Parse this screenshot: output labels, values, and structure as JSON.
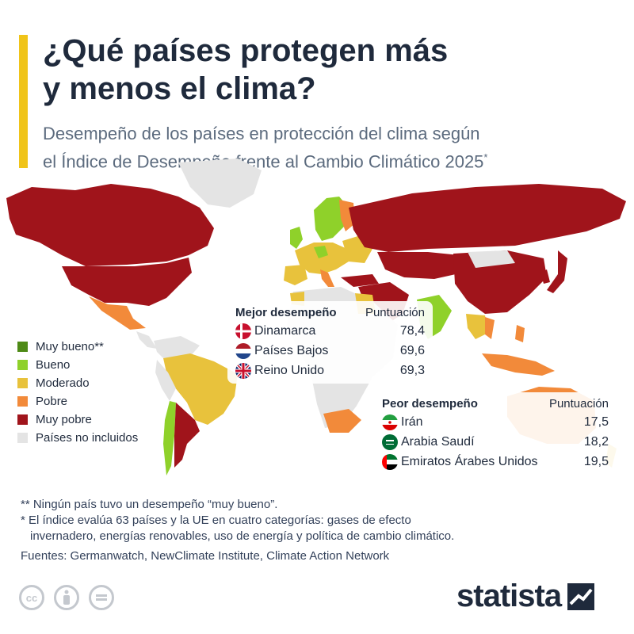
{
  "header": {
    "title_line1": "¿Qué países protegen más",
    "title_line2": "y menos el clima?",
    "subtitle_line1": "Desempeño de los países en protección del clima según",
    "subtitle_line2": "el Índice de Desempeño frente al Cambio Climático 2025",
    "subtitle_mark": "*"
  },
  "legend": {
    "items": [
      {
        "label": "Muy bueno**",
        "color": "#4e8a16"
      },
      {
        "label": "Bueno",
        "color": "#8fd12a"
      },
      {
        "label": "Moderado",
        "color": "#e8c23c"
      },
      {
        "label": "Pobre",
        "color": "#f28a3a"
      },
      {
        "label": "Muy pobre",
        "color": "#a0141b"
      },
      {
        "label": "Países no incluidos",
        "color": "#e4e4e4"
      }
    ]
  },
  "best": {
    "heading": "Mejor desempeño",
    "score_heading": "Puntuación",
    "rows": [
      {
        "name": "Dinamarca",
        "score": "78,4",
        "flag": "denmark-flag-icon"
      },
      {
        "name": "Países Bajos",
        "score": "69,6",
        "flag": "netherlands-flag-icon"
      },
      {
        "name": "Reino Unido",
        "score": "69,3",
        "flag": "uk-flag-icon"
      }
    ]
  },
  "worst": {
    "heading": "Peor desempeño",
    "score_heading": "Puntuación",
    "rows": [
      {
        "name": "Irán",
        "score": "17,5",
        "flag": "iran-flag-icon"
      },
      {
        "name": "Arabia Saudí",
        "score": "18,2",
        "flag": "saudi-arabia-flag-icon"
      },
      {
        "name": "Emiratos Árabes Unidos",
        "score": "19,5",
        "flag": "uae-flag-icon"
      }
    ]
  },
  "notes": {
    "note1": "** Ningún país tuvo un desempeño “muy bueno”.",
    "note2_line1": "* El índice evalúa 63 países y la UE en cuatro categorías: gases de efecto",
    "note2_line2": "invernadero, energías renovables, uso de energía y política de cambio climático.",
    "sources": "Fuentes: Germanwatch, NewClimate Institute, Climate Action Network"
  },
  "brand": {
    "name": "statista"
  },
  "map_colors": {
    "very_poor": "#a0141b",
    "poor": "#f28a3a",
    "moderate": "#e8c23c",
    "good": "#8fd12a",
    "not_included": "#e4e4e4"
  }
}
